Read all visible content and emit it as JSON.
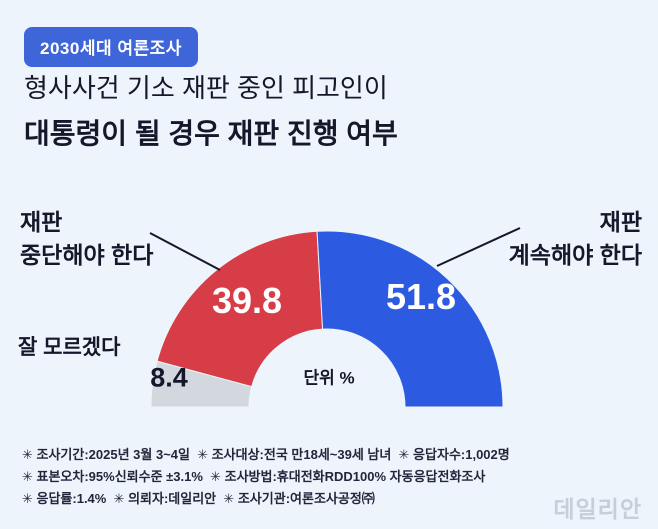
{
  "badge": {
    "label": "2030세대 여론조사"
  },
  "title": {
    "line1": "형사사건 기소 재판 중인 피고인이",
    "line2": "대통령이 될 경우 재판 진행 여부"
  },
  "chart_data": {
    "type": "pie",
    "subtype": "half_donut",
    "unit_label": "단위 %",
    "total": 100,
    "segments": [
      {
        "label": "잘 모르겠다",
        "value": 8.4,
        "color": "#d3d7de"
      },
      {
        "label": "재판 중단해야 한다",
        "value": 39.8,
        "color": "#d63d46"
      },
      {
        "label": "재판 계속해야 한다",
        "value": 51.8,
        "color": "#2c5be2"
      }
    ]
  },
  "callouts": {
    "left": {
      "line1": "재판",
      "line2": "중단해야 한다"
    },
    "right": {
      "line1": "재판",
      "line2": "계속해야 한다"
    }
  },
  "footnotes": [
    "✳ 조사기간:2025년 3월 3~4일  ✳ 조사대상:전국 만18세~39세 남녀  ✳ 응답자수:1,002명",
    "✳ 표본오차:95%신뢰수준 ±3.1%  ✳ 조사방법:휴대전화RDD100% 자동응답전화조사",
    "✳ 응답률:1.4%  ✳ 의뢰자:데일리안  ✳ 조사기관:여론조사공정㈜"
  ],
  "watermark": "데일리안",
  "colors": {
    "background": "#eef4fb",
    "badge": "#3f66d9",
    "red": "#d63d46",
    "blue": "#2c5be2",
    "gray": "#d3d7de",
    "text": "#15172b",
    "watermark": "#c6ced9"
  }
}
